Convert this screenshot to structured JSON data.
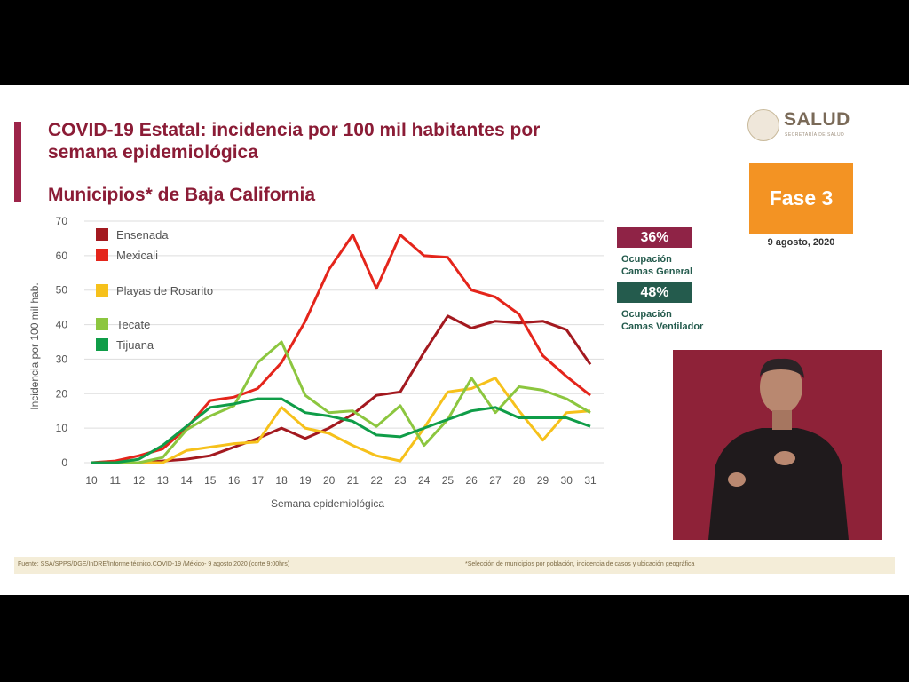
{
  "header": {
    "title_line1": "COVID-19 Estatal: incidencia por 100 mil habitantes por",
    "title_line2": "semana epidemiológica",
    "subtitle": "Municipios* de Baja California"
  },
  "logo": {
    "word": "SALUD",
    "sub": "SECRETARÍA DE SALUD"
  },
  "phase": {
    "label": "Fase 3",
    "date": "9 agosto, 2020"
  },
  "occupancy": {
    "general": {
      "percent": "36%",
      "line1": "Ocupación",
      "line2": "Camas General"
    },
    "ventilator": {
      "percent": "48%",
      "line1": "Ocupación",
      "line2": "Camas Ventilador"
    }
  },
  "footer": {
    "source": "Fuente: SSA/SPPS/DGE/InDRE/Informe técnico.COVID-19 /México- 9 agosto 2020 (corte 9:00hrs)",
    "note": "*Selección de municipios por población, incidencia de casos y ubicación geográfica"
  },
  "colors": {
    "accent": "#9d2449",
    "phase": "#f39323",
    "badge_general": "#8f2346",
    "badge_vent": "#245b4d"
  },
  "chart_data": {
    "type": "line",
    "xlabel": "Semana epidemiológica",
    "ylabel": "Incidencia por 100 mil hab.",
    "ylim": [
      0,
      70
    ],
    "yticks": [
      0,
      10,
      20,
      30,
      40,
      50,
      60,
      70
    ],
    "x": [
      10,
      11,
      12,
      13,
      14,
      15,
      16,
      17,
      18,
      19,
      20,
      21,
      22,
      23,
      24,
      25,
      26,
      27,
      28,
      29,
      30,
      31
    ],
    "grid": true,
    "legend_position": "top-left",
    "series": [
      {
        "name": "Ensenada",
        "color": "#a3191f",
        "values": [
          0,
          0,
          0,
          0.5,
          1,
          2,
          4.5,
          7,
          10,
          7,
          10,
          14,
          19.5,
          20.5,
          32,
          42.5,
          39,
          41,
          40.5,
          41,
          38.5,
          28.5
        ]
      },
      {
        "name": "Mexicali",
        "color": "#e4251b",
        "values": [
          0,
          0.5,
          2,
          4,
          10,
          18,
          19,
          21.5,
          29,
          41,
          56,
          66,
          50.5,
          66,
          60,
          59.5,
          50,
          48,
          43,
          31,
          25,
          19.5
        ]
      },
      {
        "name": "Playas de Rosarito",
        "color": "#f6c11b",
        "values": [
          0,
          0,
          0,
          0,
          3.5,
          4.5,
          5.5,
          6,
          16,
          10,
          8.5,
          5,
          2,
          0.5,
          10,
          20.5,
          21.5,
          24.5,
          15,
          6.5,
          14.5,
          15
        ]
      },
      {
        "name": "Tecate",
        "color": "#8cc63f",
        "values": [
          0,
          0,
          0,
          1.5,
          9.5,
          13.5,
          16.5,
          29,
          35,
          19.5,
          14.5,
          15,
          10.5,
          16.5,
          5,
          12.5,
          24.5,
          14.5,
          22,
          21,
          18.5,
          14.5
        ]
      },
      {
        "name": "Tijuana",
        "color": "#0f9d48",
        "values": [
          0,
          0,
          1,
          5,
          10.5,
          16,
          17,
          18.5,
          18.5,
          14.5,
          13.5,
          12,
          8,
          7.5,
          10,
          12.5,
          15,
          16,
          13,
          13,
          13,
          10.5
        ]
      }
    ]
  }
}
